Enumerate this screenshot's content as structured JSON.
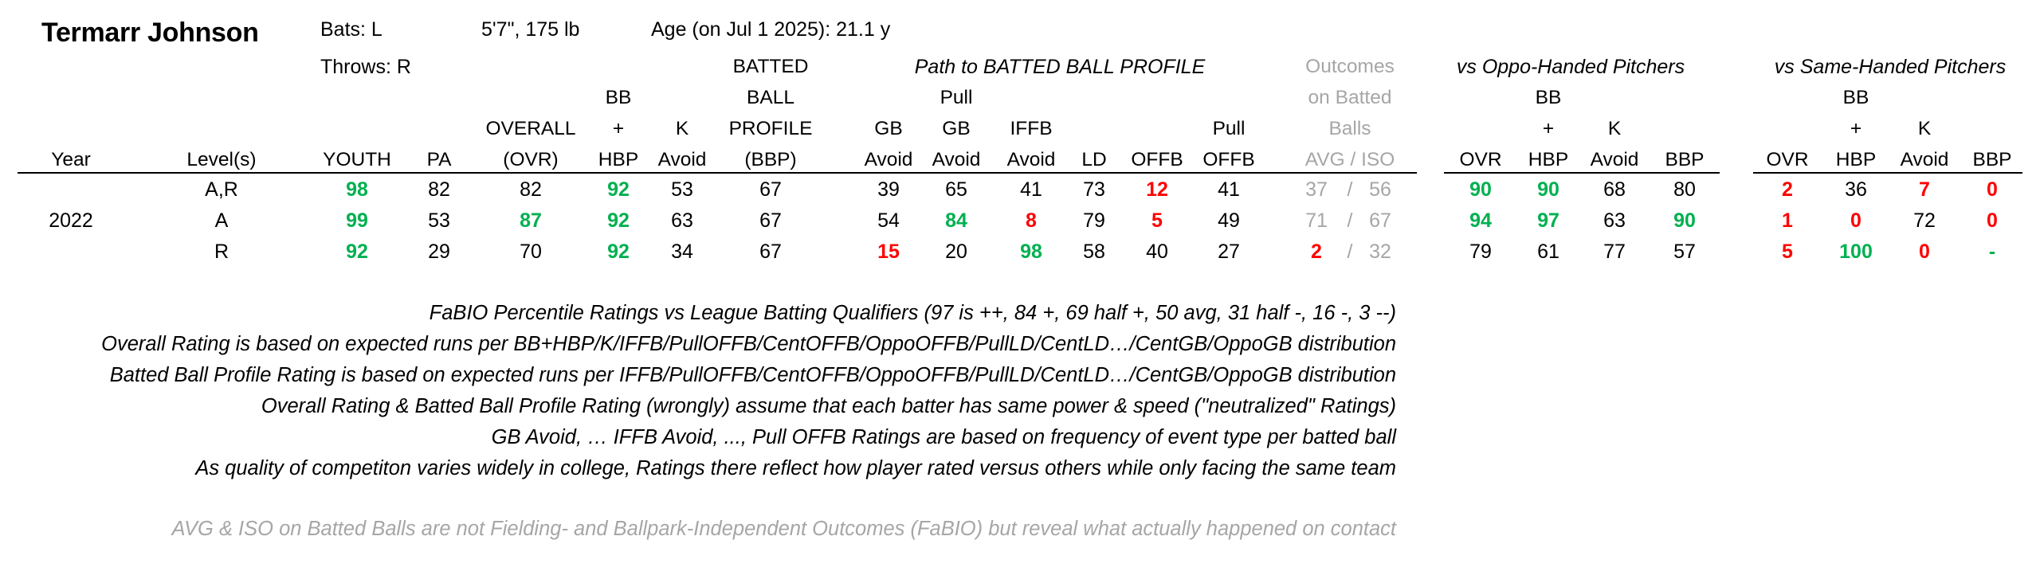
{
  "player": {
    "name": "Termarr Johnson",
    "bats": "Bats: L",
    "throws": "Throws: R",
    "size": "5'7\", 175 lb",
    "age": "Age (on Jul 1 2025): 21.1 y"
  },
  "headers": {
    "year": "Year",
    "levels": "Level(s)",
    "youth": "YOUTH",
    "pa": "PA",
    "overall_1": "OVERALL",
    "overall_2": "(OVR)",
    "bb_1": "BB",
    "bb_2": "+",
    "bb_3": "HBP",
    "k_1": "K",
    "k_2": "Avoid",
    "bbp_1": "BATTED",
    "bbp_2": "BALL",
    "bbp_3": "PROFILE",
    "bbp_4": "(BBP)",
    "path_title": "Path to BATTED BALL PROFILE",
    "gb_1": "GB",
    "gb_2": "Avoid",
    "pgb_1": "Pull",
    "pgb_2": "GB",
    "pgb_3": "Avoid",
    "iffb_1": "IFFB",
    "iffb_2": "Avoid",
    "ld": "LD",
    "offb": "OFFB",
    "poffb_1": "Pull",
    "poffb_2": "OFFB",
    "outcomes_1": "Outcomes",
    "outcomes_2": "on Batted",
    "outcomes_3": "Balls",
    "outcomes_4": "AVG  /  ISO",
    "oppo_title": "vs Oppo-Handed Pitchers",
    "same_title": "vs Same-Handed Pitchers",
    "ovr": "OVR",
    "s_bb_1": "BB",
    "s_bb_2": "+",
    "s_bb_3": "HBP",
    "s_k_1": "K",
    "s_k_2": "Avoid",
    "s_bbp": "BBP"
  },
  "rows": [
    {
      "year": "",
      "levels": "A,R",
      "youth": "98",
      "pa": "82",
      "ovr": "82",
      "bbhbp": "92",
      "kavoid": "53",
      "bbp": "67",
      "gbavoid": "39",
      "pullgb": "65",
      "iffb": "41",
      "ld": "73",
      "offb": "12",
      "pulloffb": "41",
      "avg": "37",
      "iso": "56",
      "o_ovr": "90",
      "o_bb": "90",
      "o_k": "68",
      "o_bbp": "80",
      "s_ovr": "2",
      "s_bb": "36",
      "s_k": "7",
      "s_bbp": "0"
    },
    {
      "year": "2022",
      "levels": "A",
      "youth": "99",
      "pa": "53",
      "ovr": "87",
      "bbhbp": "92",
      "kavoid": "63",
      "bbp": "67",
      "gbavoid": "54",
      "pullgb": "84",
      "iffb": "8",
      "ld": "79",
      "offb": "5",
      "pulloffb": "49",
      "avg": "71",
      "iso": "67",
      "o_ovr": "94",
      "o_bb": "97",
      "o_k": "63",
      "o_bbp": "90",
      "s_ovr": "1",
      "s_bb": "0",
      "s_k": "72",
      "s_bbp": "0"
    },
    {
      "year": "",
      "levels": "R",
      "youth": "92",
      "pa": "29",
      "ovr": "70",
      "bbhbp": "92",
      "kavoid": "34",
      "bbp": "67",
      "gbavoid": "15",
      "pullgb": "20",
      "iffb": "98",
      "ld": "58",
      "offb": "40",
      "pulloffb": "27",
      "avg": "2",
      "iso": "32",
      "o_ovr": "79",
      "o_bb": "61",
      "o_k": "77",
      "o_bbp": "57",
      "s_ovr": "5",
      "s_bb": "100",
      "s_k": "0",
      "s_bbp": "-"
    }
  ],
  "notes": [
    "FaBIO Percentile Ratings vs League Batting Qualifiers (97 is ++, 84 +, 69 half +, 50 avg, 31 half -, 16 -, 3 --)",
    "Overall Rating is based on expected runs per BB+HBP/K/IFFB/PullOFFB/CentOFFB/OppoOFFB/PullLD/CentLD…/CentGB/OppoGB distribution",
    "Batted Ball Profile Rating is based on expected runs per IFFB/PullOFFB/CentOFFB/OppoOFFB/PullLD/CentLD…/CentGB/OppoGB distribution",
    "Overall Rating & Batted Ball Profile Rating (wrongly) assume that each batter has same power & speed (\"neutralized\" Ratings)",
    "GB Avoid, … IFFB Avoid, ..., Pull OFFB Ratings are based on frequency of event type per batted ball",
    "As quality of competiton varies widely in college, Ratings there reflect how player rated versus others while only facing the same team"
  ],
  "footnote": "AVG & ISO on Batted Balls are not Fielding- and Ballpark-Independent Outcomes (FaBIO) but reveal what actually happened on contact",
  "colors": {
    "good": "#00b050",
    "bad": "#ff0000",
    "muted": "#a6a6a6"
  }
}
